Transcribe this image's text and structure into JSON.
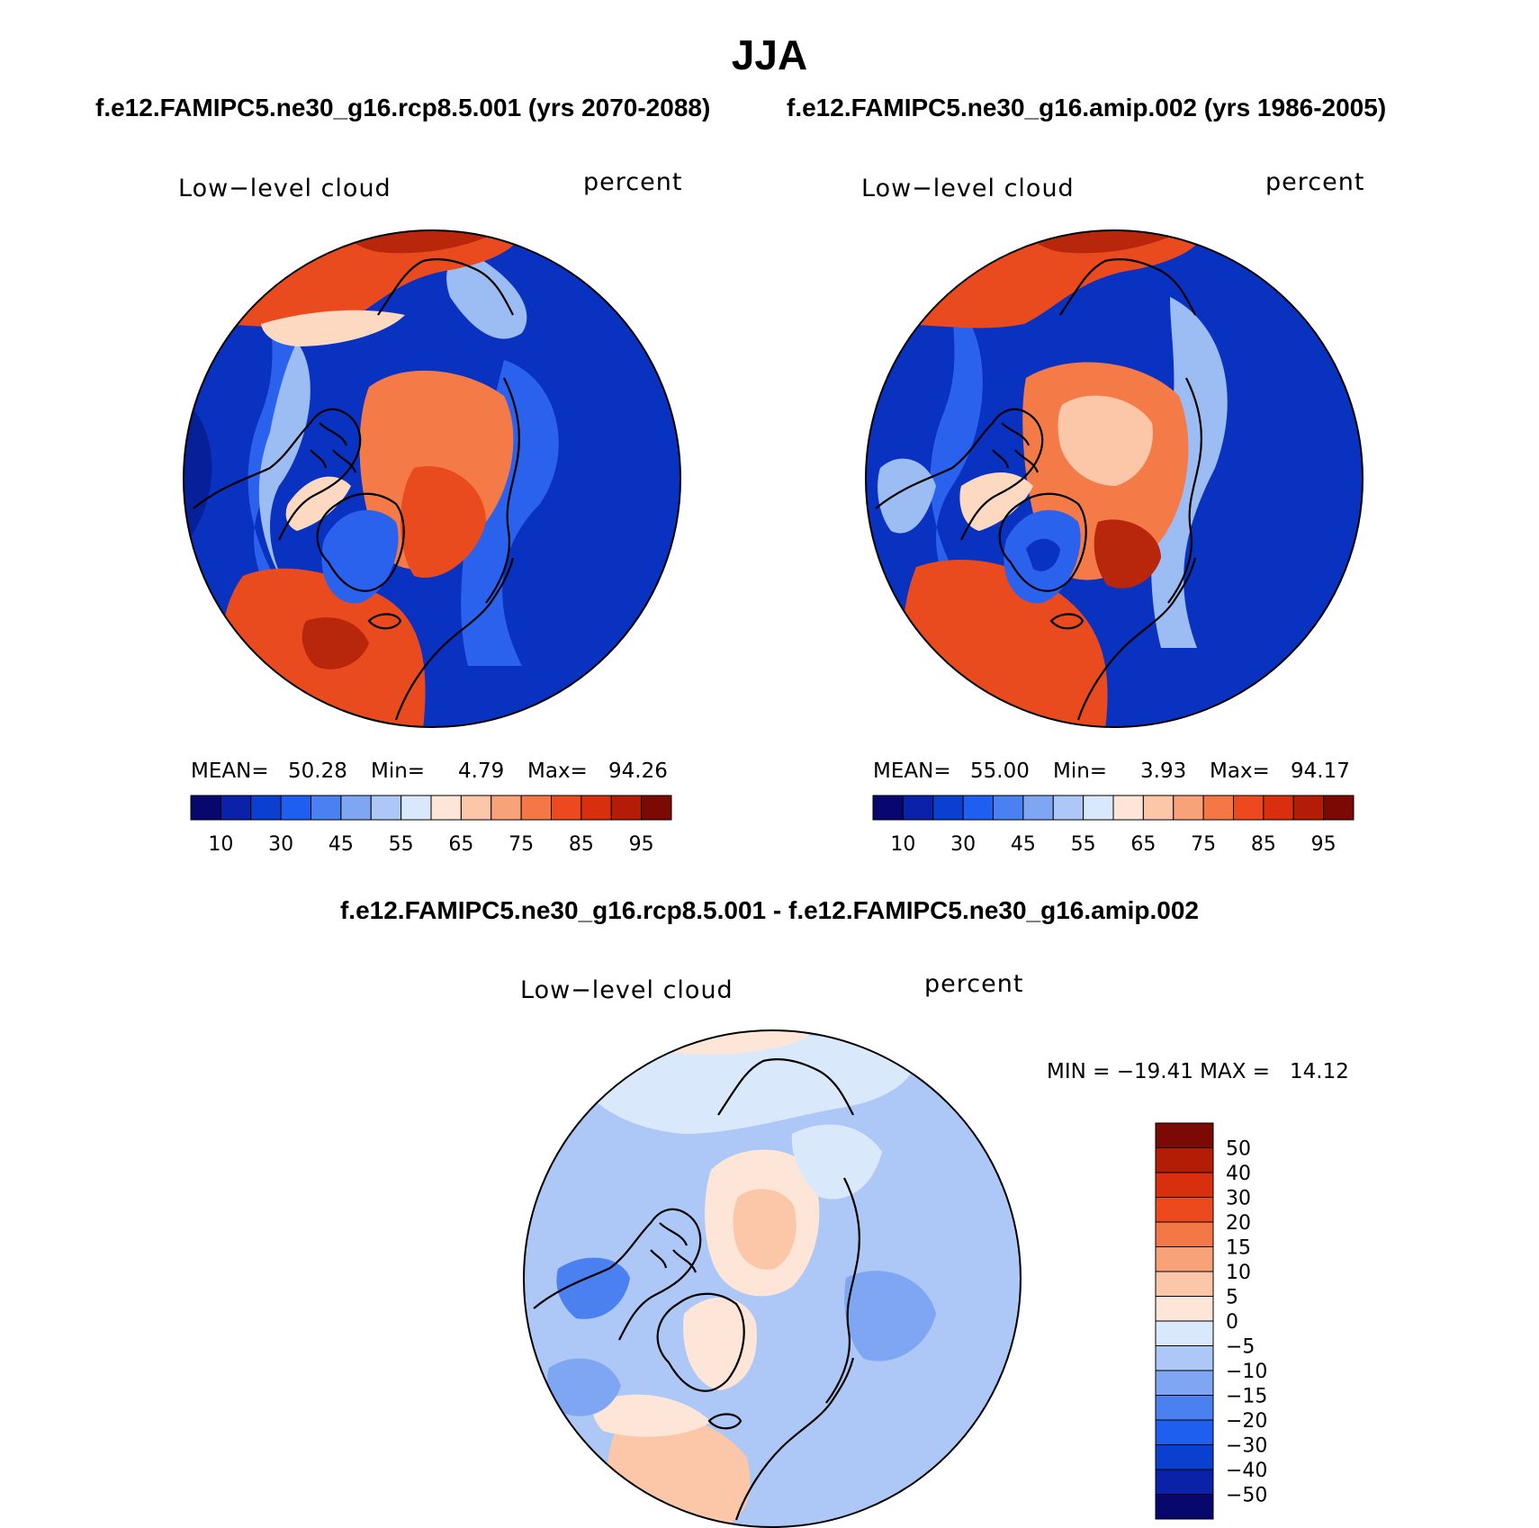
{
  "title": "JJA",
  "case_titles": {
    "left": "f.e12.FAMIPC5.ne30_g16.rcp8.5.001 (yrs 2070-2088)",
    "right": "f.e12.FAMIPC5.ne30_g16.amip.002 (yrs 1986-2005)"
  },
  "diff_title": "f.e12.FAMIPC5.ne30_g16.rcp8.5.001 - f.e12.FAMIPC5.ne30_g16.amip.002",
  "panels": [
    {
      "variable": "Low−level cloud",
      "units": "percent",
      "mean_label": "MEAN=",
      "mean": "50.28",
      "min_label": "Min=",
      "min": "4.79",
      "max_label": "Max=",
      "max": "94.26"
    },
    {
      "variable": "Low−level cloud",
      "units": "percent",
      "mean_label": "MEAN=",
      "mean": "55.00",
      "min_label": "Min=",
      "min": "3.93",
      "max_label": "Max=",
      "max": "94.17"
    },
    {
      "variable": "Low−level cloud",
      "units": "percent",
      "minmax": "MIN = −19.41 MAX =   14.12"
    }
  ],
  "colorbar_abs": {
    "colors": [
      "#08076e",
      "#0a22a8",
      "#0b3fd0",
      "#1f5ff0",
      "#4a80f0",
      "#7fa6f2",
      "#adc7f6",
      "#d9e8fa",
      "#fde6d8",
      "#fbc7a8",
      "#f8a27a",
      "#f47746",
      "#ec4a1e",
      "#d8300e",
      "#b31d06",
      "#7a0a03"
    ],
    "tick_labels": [
      "10",
      "30",
      "45",
      "55",
      "65",
      "75",
      "85",
      "95"
    ]
  },
  "colorbar_diff": {
    "colors": [
      "#08076e",
      "#0a22a8",
      "#0b3fd0",
      "#1f5ff0",
      "#4a80f0",
      "#7fa6f2",
      "#adc7f6",
      "#d9e8fa",
      "#fde6d8",
      "#fbc7a8",
      "#f8a27a",
      "#f47746",
      "#ec4a1e",
      "#d8300e",
      "#b31d06",
      "#7a0a03"
    ],
    "tick_labels": [
      "50",
      "40",
      "30",
      "20",
      "15",
      "10",
      "5",
      "0",
      "−5",
      "−10",
      "−15",
      "−20",
      "−30",
      "−40",
      "−50"
    ]
  },
  "map_colors": {
    "deep_blue": "#0a32c0",
    "mid_blue": "#2a62ee",
    "light_blue": "#9cbcf4",
    "pale_blue": "#d5e6fb",
    "pale_orange": "#fdd9c2",
    "orange": "#f47a48",
    "red_orange": "#e94a1e",
    "dark_red": "#b8260c",
    "coast": "#000000"
  }
}
